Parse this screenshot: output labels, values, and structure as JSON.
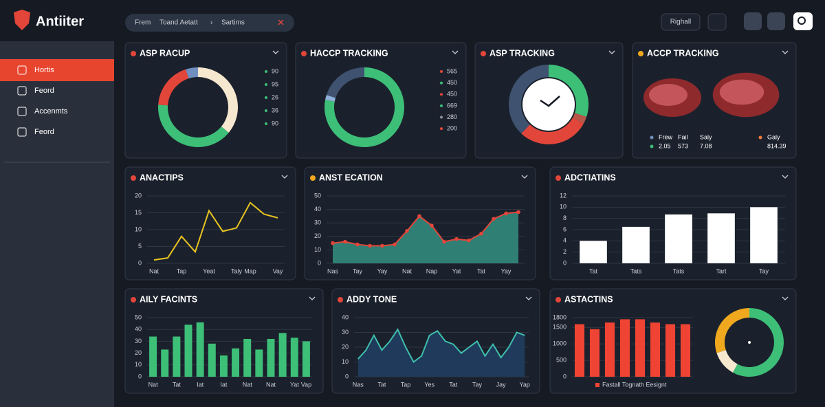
{
  "header": {
    "logo": "Antiiter",
    "search": [
      "Frem",
      "Toand Aetatt",
      "›",
      "Sartims"
    ],
    "button": "Righall"
  },
  "sidebar": {
    "items": [
      "Hortis",
      "Feord",
      "Accenmts",
      "Feord"
    ]
  },
  "chart_data": [
    {
      "type": "donut",
      "title": "ASP RACUP",
      "values": [
        36,
        40,
        19,
        5
      ],
      "colors": [
        "#f6e7cf",
        "#3dbf78",
        "#e2463a",
        "#6f8fbf"
      ],
      "legend_values": [
        90,
        95,
        26,
        36,
        90
      ],
      "legend_colors": [
        "#3dbf78",
        "#3dbf78",
        "#3dbf78",
        "#3dbf78",
        "#3dbf78"
      ]
    },
    {
      "type": "donut",
      "title": "HACCP TRACKING",
      "values": [
        78,
        2,
        20
      ],
      "colors": [
        "#3dbf78",
        "#8fb0d8",
        "#3f5270"
      ],
      "legend_values": [
        565,
        450,
        450,
        669,
        280,
        200
      ],
      "legend_colors": [
        "#e2463a",
        "#3dbf78",
        "#e2463a",
        "#3dbf78",
        "#8a8f98",
        "#e2463a"
      ]
    },
    {
      "type": "gauge",
      "title": "ASP TRACKING",
      "values": [
        30,
        3,
        29,
        38
      ],
      "colors": [
        "#3dbf78",
        "#b8564a",
        "#e2463a",
        "#3f5270"
      ]
    },
    {
      "type": "table",
      "title": "ACCP TRACKING",
      "header": [
        "Frew",
        "Fail",
        "Saly",
        "Galy"
      ],
      "values": [
        2.05,
        573,
        7.08,
        814.39
      ]
    },
    {
      "type": "line",
      "title": "ANACTIPS",
      "categories": [
        "Nat",
        null,
        "Tap",
        null,
        "Yeat",
        null,
        "Taly",
        "Map",
        null,
        "Vay"
      ],
      "values": [
        1,
        1.6,
        8,
        3.4,
        15.6,
        9.5,
        10.5,
        18,
        14.6,
        13.5
      ],
      "color": "#e8c420",
      "ylim": [
        0,
        20
      ],
      "yticks": [
        0,
        5,
        10,
        15,
        20
      ]
    },
    {
      "type": "area",
      "title": "ANST ECATION",
      "categories": [
        "Nas",
        null,
        "Tay",
        null,
        "Yay",
        null,
        "Nat",
        null,
        "Nap",
        null,
        "Yat",
        null,
        "Tat",
        null,
        "Yay",
        null
      ],
      "values": [
        15,
        16,
        14,
        13,
        13,
        14,
        24,
        35,
        28,
        16,
        18,
        17,
        22,
        33,
        37,
        38
      ],
      "color": "#2f7f74",
      "line_color": "#e2463a",
      "marker_color": "#e2463a",
      "ylim": [
        0,
        50
      ],
      "yticks": [
        0,
        10,
        20,
        30,
        40,
        50
      ]
    },
    {
      "type": "bar",
      "title": "ADCTIATINS",
      "categories": [
        "Tat",
        "Tats",
        "Tats",
        "Tart",
        "Tay"
      ],
      "values": [
        4,
        6.5,
        8.7,
        8.9,
        10
      ],
      "color": "#ffffff",
      "ylim": [
        0,
        12
      ],
      "yticks": [
        0,
        2,
        4,
        6,
        8,
        10,
        12
      ]
    },
    {
      "type": "bar",
      "title": "AILY FACINTS",
      "categories": [
        "Nat",
        null,
        "Tat",
        null,
        "Iat",
        null,
        "Iat",
        null,
        "Nat",
        null,
        "Nat",
        null,
        "Yat",
        "Vap"
      ],
      "values": [
        34,
        23,
        34,
        44,
        46,
        28,
        18,
        24,
        32,
        23,
        32,
        37,
        33,
        30
      ],
      "color": "#3dbf78",
      "ylim": [
        0,
        50
      ],
      "yticks": [
        0,
        10,
        20,
        30,
        40,
        50
      ]
    },
    {
      "type": "area",
      "title": "ADDY TONE",
      "categories": [
        "Nas",
        null,
        null,
        "Tat",
        null,
        null,
        "Tap",
        null,
        null,
        "Yes",
        null,
        null,
        "Tat",
        null,
        null,
        "Tay",
        null,
        null,
        "Jay",
        null,
        null,
        "Yap"
      ],
      "values": [
        12,
        18,
        28,
        18,
        24,
        32,
        20,
        10,
        14,
        28,
        31,
        24,
        22,
        16,
        20,
        24,
        14,
        22,
        13,
        20,
        30,
        28
      ],
      "color": "#1f3a5a",
      "line_color": "#3fbfae",
      "ylim": [
        0,
        40
      ],
      "yticks": [
        0,
        10,
        20,
        30,
        40
      ]
    },
    {
      "type": "bar",
      "title": "ASTACTINS",
      "categories": [
        null,
        null,
        null,
        null,
        null,
        null,
        null,
        null
      ],
      "values": [
        1600,
        1450,
        1650,
        1750,
        1750,
        1650,
        1600,
        1600
      ],
      "color": "#ef4433",
      "ylim": [
        0,
        1800
      ],
      "yticks": [
        0,
        500,
        1000,
        1500,
        1800
      ],
      "legend": "Fastall Tognath Eesignt",
      "donut": {
        "values": [
          58,
          12,
          30
        ],
        "colors": [
          "#3dbf78",
          "#f6e7cf",
          "#f0a81e"
        ]
      }
    }
  ]
}
